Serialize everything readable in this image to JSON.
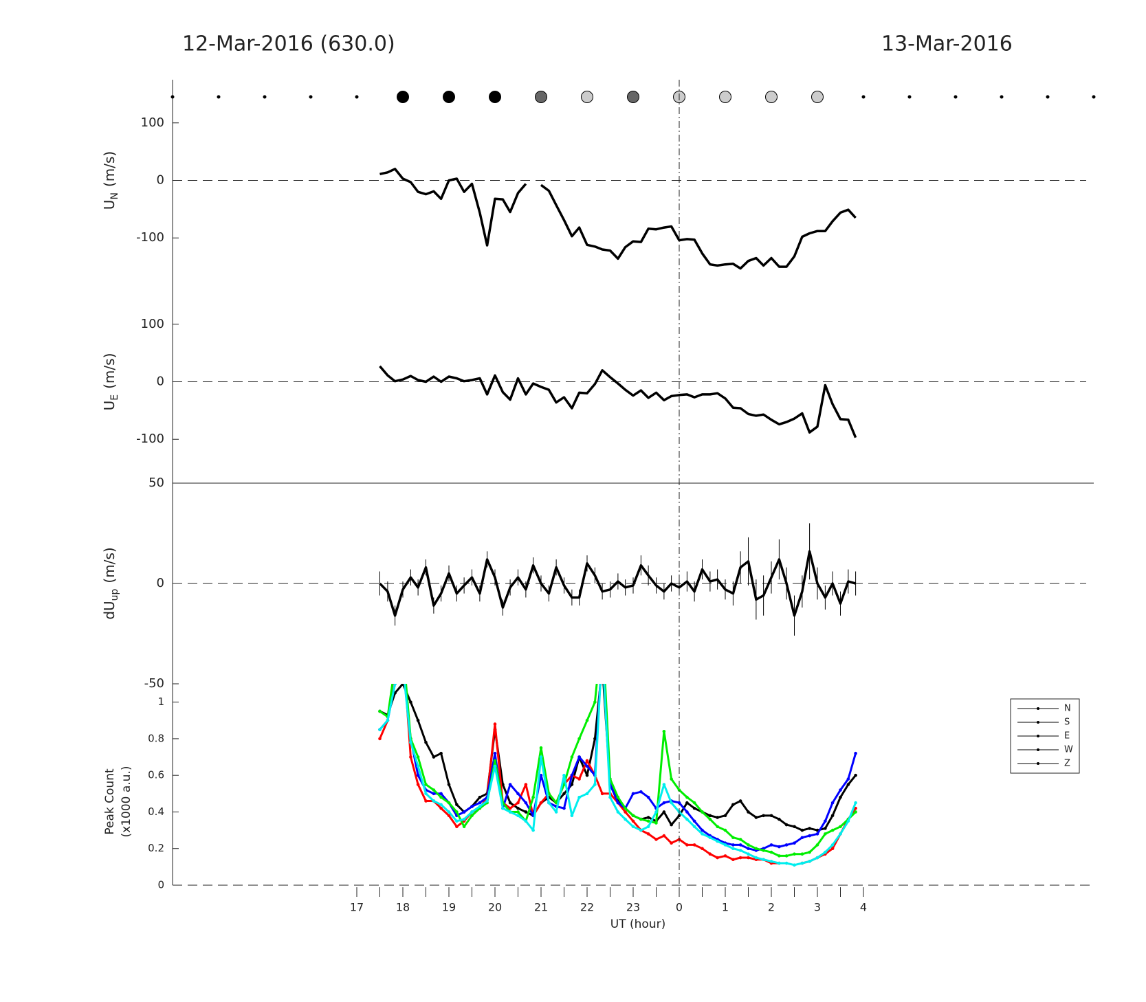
{
  "chart_data": [
    {
      "type": "line",
      "title": "12-Mar-2016 (630.0)",
      "subtitle": "13-Mar-2016",
      "ylabel": "U",
      "ylabel_sub": "N",
      "ylabel_unit": "(m/s)",
      "ylim": [
        -175,
        175
      ],
      "yticks": [
        -100,
        0,
        100
      ],
      "zero_line": true,
      "vline": 24,
      "markers": {
        "x": [
          13,
          14,
          15,
          16,
          17,
          18,
          19,
          20,
          21,
          22,
          23,
          24,
          25,
          26,
          27,
          28,
          29,
          30,
          31,
          32,
          33
        ],
        "colors": [
          "#000",
          "#000",
          "#000",
          "#000",
          "#000",
          "#000",
          "#000",
          "#000",
          "#666",
          "#ccc",
          "#666",
          "#ccc",
          "#ccc",
          "#ccc",
          "#ccc",
          "#000",
          "#000",
          "#000",
          "#000",
          "#000",
          "#000"
        ],
        "large": [
          false,
          false,
          false,
          false,
          false,
          true,
          true,
          true,
          true,
          true,
          true,
          true,
          true,
          true,
          true,
          false,
          false,
          false,
          false,
          false,
          false
        ]
      },
      "xlim": [
        13,
        33
      ],
      "x": [
        17.5,
        17.67,
        17.83,
        18,
        18.17,
        18.33,
        18.5,
        18.67,
        18.83,
        19,
        19.17,
        19.33,
        19.5,
        19.67,
        19.83,
        20,
        20.17,
        20.33,
        20.5,
        20.67,
        20.83,
        21,
        21.17,
        21.33,
        21.5,
        21.67,
        21.83,
        22,
        22.17,
        22.33,
        22.5,
        22.67,
        22.83,
        23,
        23.17,
        23.33,
        23.5,
        23.67,
        23.83,
        24,
        24.17,
        24.33,
        24.5,
        24.67,
        24.83,
        25,
        25.17,
        25.33,
        25.5,
        25.67,
        25.83,
        26,
        26.17,
        26.33,
        26.5,
        26.67,
        26.83,
        27,
        27.17,
        27.33,
        27.5,
        27.67,
        27.83,
        28
      ],
      "series": [
        {
          "name": "UN",
          "color": "#000",
          "values": [
            11,
            14,
            20,
            3,
            -3,
            -20,
            -24,
            -19,
            -32,
            0,
            3,
            -20,
            -6,
            -56,
            -113,
            -32,
            -33,
            -55,
            -22,
            -6,
            null,
            -8,
            -18,
            -43,
            -69,
            -97,
            -82,
            -112,
            -115,
            -120,
            -122,
            -136,
            -116,
            -106,
            -107,
            -84,
            -85,
            -82,
            -80,
            -104,
            -102,
            -103,
            -127,
            -146,
            -148,
            -146,
            -145,
            -153,
            -140,
            -135,
            -148,
            -135,
            -150,
            -150,
            -132,
            -98,
            -92,
            -88,
            -88,
            -71,
            -56,
            -51,
            -65,
            null
          ]
        }
      ]
    },
    {
      "type": "line",
      "ylabel": "U",
      "ylabel_sub": "E",
      "ylabel_unit": "(m/s)",
      "ylim": [
        -175,
        175
      ],
      "yticks": [
        -100,
        0,
        100
      ],
      "zero_line": true,
      "xlim": [
        13,
        33
      ],
      "x": [
        17.5,
        17.67,
        17.83,
        18,
        18.17,
        18.33,
        18.5,
        18.67,
        18.83,
        19,
        19.17,
        19.33,
        19.5,
        19.67,
        19.83,
        20,
        20.17,
        20.33,
        20.5,
        20.67,
        20.83,
        21,
        21.17,
        21.33,
        21.5,
        21.67,
        21.83,
        22,
        22.17,
        22.33,
        22.5,
        22.67,
        22.83,
        23,
        23.17,
        23.33,
        23.5,
        23.67,
        23.83,
        24,
        24.17,
        24.33,
        24.5,
        24.67,
        24.83,
        25,
        25.17,
        25.33,
        25.5,
        25.67,
        25.83,
        26,
        26.17,
        26.33,
        26.5,
        26.67,
        26.83,
        27,
        27.17,
        27.33,
        27.5,
        27.67,
        27.83,
        28
      ],
      "series": [
        {
          "name": "UE",
          "color": "#000",
          "values": [
            27,
            11,
            1,
            4,
            10,
            3,
            0,
            9,
            0,
            9,
            6,
            1,
            3,
            6,
            -22,
            11,
            -18,
            -31,
            6,
            -22,
            -3,
            -9,
            -14,
            -36,
            -27,
            -46,
            -19,
            -20,
            -4,
            20,
            8,
            -3,
            -14,
            -24,
            -15,
            -28,
            -19,
            -32,
            -25,
            -23,
            -22,
            -27,
            -22,
            -22,
            -20,
            -29,
            -45,
            -46,
            -56,
            -59,
            -57,
            -66,
            -74,
            -70,
            -64,
            -55,
            -88,
            -78,
            -6,
            -39,
            -65,
            -66,
            -97,
            null
          ]
        }
      ]
    },
    {
      "type": "line",
      "ylabel": "dU",
      "ylabel_sub": "up",
      "ylabel_unit": "(m/s)",
      "ylim": [
        -50,
        50
      ],
      "yticks": [
        -50,
        0,
        50
      ],
      "zero_line": true,
      "top_line": true,
      "xlim": [
        13,
        33
      ],
      "x": [
        17.5,
        17.67,
        17.83,
        18,
        18.17,
        18.33,
        18.5,
        18.67,
        18.83,
        19,
        19.17,
        19.33,
        19.5,
        19.67,
        19.83,
        20,
        20.17,
        20.33,
        20.5,
        20.67,
        20.83,
        21,
        21.17,
        21.33,
        21.5,
        21.67,
        21.83,
        22,
        22.17,
        22.33,
        22.5,
        22.67,
        22.83,
        23,
        23.17,
        23.33,
        23.5,
        23.67,
        23.83,
        24,
        24.17,
        24.33,
        24.5,
        24.67,
        24.83,
        25,
        25.17,
        25.33,
        25.5,
        25.67,
        25.83,
        26,
        26.17,
        26.33,
        26.5,
        26.67,
        26.83,
        27,
        27.17,
        27.33,
        27.5,
        27.67,
        27.83,
        28
      ],
      "series": [
        {
          "name": "dUup",
          "color": "#000",
          "values": [
            0,
            -4,
            -16,
            -3,
            3,
            -2,
            8,
            -11,
            -5,
            5,
            -5,
            -1,
            3,
            -5,
            12,
            3,
            -12,
            -2,
            3,
            -3,
            9,
            0,
            -5,
            8,
            -1,
            -7,
            -7,
            10,
            4,
            -4,
            -3,
            1,
            -2,
            -1,
            9,
            4,
            -1,
            -4,
            0,
            -2,
            1,
            -4,
            7,
            1,
            2,
            -3,
            -5,
            8,
            11,
            -8,
            -6,
            3,
            12,
            0,
            -16,
            -4,
            16,
            0,
            -7,
            0,
            -10,
            1,
            0,
            null
          ],
          "errors": [
            6,
            5,
            5,
            4,
            4,
            4,
            4,
            4,
            4,
            4,
            4,
            4,
            4,
            4,
            4,
            4,
            4,
            4,
            4,
            4,
            4,
            4,
            4,
            4,
            4,
            4,
            4,
            4,
            4,
            4,
            4,
            4,
            4,
            4,
            5,
            5,
            4,
            4,
            4,
            4,
            5,
            5,
            5,
            5,
            5,
            5,
            6,
            8,
            12,
            10,
            10,
            8,
            10,
            8,
            10,
            8,
            14,
            8,
            6,
            6,
            6,
            6,
            6,
            null
          ]
        }
      ]
    },
    {
      "type": "line",
      "ylabel": "Peak Count",
      "ylabel2": "(x1000 a.u.)",
      "xlabel": "UT (hour)",
      "ylim": [
        0,
        1.1
      ],
      "yticks": [
        0,
        0.2,
        0.4,
        0.6,
        0.8,
        1
      ],
      "bottom_line": true,
      "xlim": [
        13,
        33
      ],
      "xticks": [
        17,
        18,
        19,
        20,
        21,
        22,
        23,
        {
          "value": 24,
          "label": "0"
        },
        {
          "value": 25,
          "label": "1"
        },
        {
          "value": 26,
          "label": "2"
        },
        {
          "value": 27,
          "label": "3"
        },
        {
          "value": 28,
          "label": "4"
        }
      ],
      "xminorticks": [
        17.5,
        18.5,
        19.5,
        20.5,
        21.5,
        22.5,
        23.5,
        24.5,
        25.5,
        26.5,
        27.5
      ],
      "legend": "upper right",
      "legend_line_color": "#000",
      "x": [
        17.5,
        17.67,
        17.83,
        18,
        18.17,
        18.33,
        18.5,
        18.67,
        18.83,
        19,
        19.17,
        19.33,
        19.5,
        19.67,
        19.83,
        20,
        20.17,
        20.33,
        20.5,
        20.67,
        20.83,
        21,
        21.17,
        21.33,
        21.5,
        21.67,
        21.83,
        22,
        22.17,
        22.33,
        22.5,
        22.67,
        22.83,
        23,
        23.17,
        23.33,
        23.5,
        23.67,
        23.83,
        24,
        24.17,
        24.33,
        24.5,
        24.67,
        24.83,
        25,
        25.17,
        25.33,
        25.5,
        25.67,
        25.83,
        26,
        26.17,
        26.33,
        26.5,
        26.67,
        26.83,
        27,
        27.17,
        27.33,
        27.5,
        27.67,
        27.83,
        28
      ],
      "series": [
        {
          "name": "N",
          "color": "#000000",
          "values": [
            0.95,
            0.93,
            1.05,
            1.1,
            1.0,
            0.9,
            0.78,
            0.7,
            0.72,
            0.55,
            0.44,
            0.4,
            0.43,
            0.48,
            0.5,
            0.85,
            0.55,
            0.45,
            0.42,
            0.4,
            0.38,
            0.45,
            0.48,
            0.45,
            0.5,
            0.55,
            0.7,
            0.6,
            0.8,
            1.2,
            0.55,
            0.46,
            0.42,
            0.38,
            0.36,
            0.37,
            0.35,
            0.4,
            0.33,
            0.38,
            0.45,
            0.42,
            0.4,
            0.38,
            0.37,
            0.38,
            0.44,
            0.46,
            0.4,
            0.37,
            0.38,
            0.38,
            0.36,
            0.33,
            0.32,
            0.3,
            0.31,
            0.3,
            0.31,
            0.38,
            0.48,
            0.55,
            0.6,
            null
          ]
        },
        {
          "name": "S",
          "color": "#ff0000",
          "values": [
            0.8,
            0.9,
            1.2,
            1.3,
            0.7,
            0.55,
            0.46,
            0.46,
            0.42,
            0.38,
            0.32,
            0.35,
            0.4,
            0.42,
            0.48,
            0.88,
            0.45,
            0.42,
            0.45,
            0.55,
            0.38,
            0.45,
            0.5,
            0.45,
            0.55,
            0.6,
            0.58,
            0.68,
            0.6,
            0.5,
            0.5,
            0.45,
            0.4,
            0.35,
            0.3,
            0.28,
            0.25,
            0.27,
            0.23,
            0.25,
            0.22,
            0.22,
            0.2,
            0.17,
            0.15,
            0.16,
            0.14,
            0.15,
            0.15,
            0.14,
            0.14,
            0.12,
            0.12,
            null,
            null,
            0.12,
            0.13,
            0.15,
            0.17,
            0.2,
            0.28,
            0.36,
            0.42,
            null
          ]
        },
        {
          "name": "E",
          "color": "#0000ff",
          "values": [
            0.85,
            0.9,
            1.1,
            1.2,
            0.8,
            0.6,
            0.52,
            0.5,
            0.5,
            0.45,
            0.38,
            0.4,
            0.43,
            0.45,
            0.48,
            0.72,
            0.42,
            0.55,
            0.5,
            0.45,
            0.38,
            0.6,
            0.45,
            0.43,
            0.42,
            0.6,
            0.7,
            0.65,
            0.6,
            1.3,
            0.55,
            0.45,
            0.42,
            0.5,
            0.51,
            0.48,
            0.42,
            0.45,
            0.46,
            0.45,
            0.4,
            0.35,
            0.3,
            0.27,
            0.25,
            0.23,
            0.22,
            0.22,
            0.2,
            0.19,
            0.2,
            0.22,
            0.21,
            0.22,
            0.23,
            0.26,
            0.27,
            0.28,
            0.35,
            0.45,
            0.52,
            0.58,
            0.72,
            null
          ]
        },
        {
          "name": "W",
          "color": "#00ee00",
          "values": [
            0.95,
            0.92,
            1.2,
            1.3,
            0.8,
            0.7,
            0.55,
            0.52,
            0.48,
            0.45,
            0.4,
            0.32,
            0.38,
            0.42,
            0.45,
            0.68,
            0.45,
            0.4,
            0.4,
            0.35,
            0.48,
            0.75,
            0.5,
            0.45,
            0.55,
            0.7,
            0.8,
            0.9,
            1.0,
            1.4,
            0.58,
            0.48,
            0.42,
            0.38,
            0.36,
            0.35,
            0.34,
            0.84,
            0.58,
            0.52,
            0.48,
            0.45,
            0.4,
            0.36,
            0.32,
            0.3,
            0.26,
            0.25,
            0.22,
            0.2,
            0.19,
            0.18,
            0.16,
            0.16,
            0.17,
            0.17,
            0.18,
            0.22,
            0.28,
            0.3,
            0.32,
            0.36,
            0.4,
            null
          ]
        },
        {
          "name": "Z",
          "color": "#00eeee",
          "values": [
            0.85,
            0.9,
            1.1,
            1.2,
            0.78,
            0.65,
            0.5,
            0.46,
            0.44,
            0.4,
            0.35,
            0.36,
            0.4,
            0.43,
            0.46,
            0.65,
            0.42,
            0.4,
            0.38,
            0.35,
            0.3,
            0.7,
            0.45,
            0.4,
            0.6,
            0.38,
            0.48,
            0.5,
            0.55,
            1.3,
            0.48,
            0.4,
            0.36,
            0.32,
            0.3,
            0.32,
            0.4,
            0.55,
            0.45,
            0.4,
            0.36,
            0.32,
            0.28,
            0.26,
            0.24,
            0.22,
            0.2,
            0.19,
            0.17,
            0.15,
            0.14,
            0.13,
            0.12,
            0.12,
            0.11,
            0.12,
            0.13,
            0.15,
            0.18,
            0.22,
            0.28,
            0.35,
            0.45,
            null
          ]
        }
      ]
    }
  ]
}
